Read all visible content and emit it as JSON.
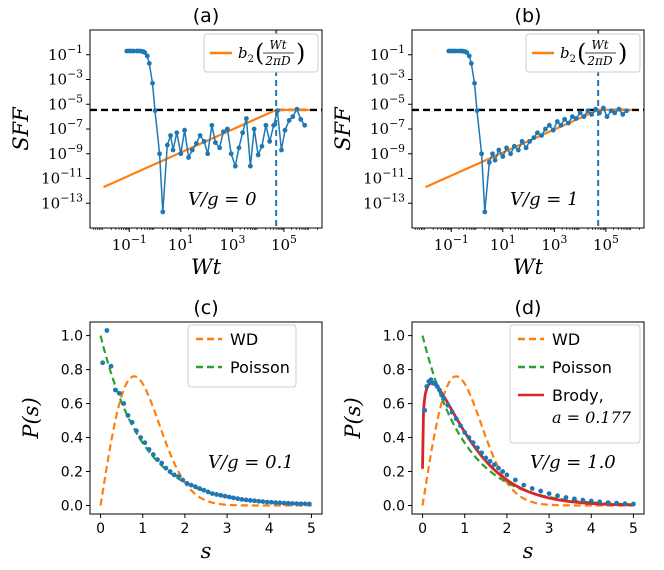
{
  "figure": {
    "description_visible": false
  },
  "chart_data": [
    {
      "id": "a",
      "panel_label": "(a)",
      "type": "line",
      "xscale": "log",
      "yscale": "log",
      "xlabel": "Wt",
      "ylabel": "SFF",
      "xlim": [
        0.003,
        3000000
      ],
      "ylim": [
        1e-15,
        10
      ],
      "x_ticks": [
        {
          "v": 0.1,
          "label": "10^-1"
        },
        {
          "v": 10,
          "label": "10^1"
        },
        {
          "v": 1000,
          "label": "10^3"
        },
        {
          "v": 100000,
          "label": "10^5"
        }
      ],
      "y_ticks": [
        {
          "v": 0.1,
          "label": "10^-1"
        },
        {
          "v": 0.001,
          "label": "10^-3"
        },
        {
          "v": 1e-05,
          "label": "10^-5"
        },
        {
          "v": 1e-07,
          "label": "10^-7"
        },
        {
          "v": 1e-09,
          "label": "10^-9"
        },
        {
          "v": 1e-11,
          "label": "10^-11"
        },
        {
          "v": 1e-13,
          "label": "10^-13"
        }
      ],
      "plateau_y": 3.5e-06,
      "heisenberg_x": 50000,
      "annotation": "V/g = 0",
      "legend": [
        {
          "label": "b2(Wt/2πD)",
          "color": "#ff7f0e",
          "style": "solid"
        }
      ],
      "series": [
        {
          "name": "b2(Wt/2πD)",
          "color": "#ff7f0e",
          "style": "line",
          "x": [
            0.01,
            50000,
            1000000
          ],
          "y": [
            2e-12,
            3.5e-06,
            3.5e-06
          ]
        },
        {
          "name": "SFF",
          "color": "#1f77b4",
          "style": "line-markers",
          "x": [
            0.08,
            0.1,
            0.12,
            0.15,
            0.2,
            0.25,
            0.3,
            0.35,
            0.4,
            0.5,
            0.6,
            0.8,
            1.0,
            1.5,
            2,
            3,
            4,
            5,
            7,
            10,
            14,
            20,
            28,
            40,
            56,
            80,
            110,
            160,
            220,
            320,
            450,
            640,
            900,
            1300,
            1800,
            2500,
            3500,
            5000,
            7000,
            10000,
            14000,
            20000,
            28000,
            40000,
            56000,
            80000,
            110000,
            160000,
            220000,
            320000,
            450000,
            640000
          ],
          "y": [
            0.2,
            0.2,
            0.2,
            0.2,
            0.2,
            0.2,
            0.19,
            0.18,
            0.15,
            0.08,
            0.02,
            0.0005,
            3e-06,
            1e-09,
            2e-14,
            5e-09,
            3e-08,
            2e-09,
            5e-08,
            1e-09,
            8e-08,
            5e-10,
            2e-09,
            7e-09,
            3e-08,
            1e-08,
            1e-09,
            2e-07,
            8e-09,
            3e-09,
            6e-08,
            1e-07,
            1e-09,
            1e-10,
            3e-09,
            5e-08,
            7e-07,
            1e-10,
            1e-07,
            8e-10,
            4e-09,
            2e-07,
            1e-08,
            2e-07,
            3e-06,
            2e-09,
            8e-08,
            5e-07,
            1e-06,
            4e-06,
            6e-07,
            2e-07
          ]
        }
      ]
    },
    {
      "id": "b",
      "panel_label": "(b)",
      "type": "line",
      "xscale": "log",
      "yscale": "log",
      "xlabel": "Wt",
      "ylabel": "SFF",
      "xlim": [
        0.003,
        3000000
      ],
      "ylim": [
        1e-15,
        10
      ],
      "x_ticks": [
        {
          "v": 0.1,
          "label": "10^-1"
        },
        {
          "v": 10,
          "label": "10^1"
        },
        {
          "v": 1000,
          "label": "10^3"
        },
        {
          "v": 100000,
          "label": "10^5"
        }
      ],
      "y_ticks": [
        {
          "v": 0.1,
          "label": "10^-1"
        },
        {
          "v": 0.001,
          "label": "10^-3"
        },
        {
          "v": 1e-05,
          "label": "10^-5"
        },
        {
          "v": 1e-07,
          "label": "10^-7"
        },
        {
          "v": 1e-09,
          "label": "10^-9"
        },
        {
          "v": 1e-11,
          "label": "10^-11"
        },
        {
          "v": 1e-13,
          "label": "10^-13"
        }
      ],
      "plateau_y": 3.5e-06,
      "heisenberg_x": 50000,
      "annotation": "V/g = 1",
      "legend": [
        {
          "label": "b2(Wt/2πD)",
          "color": "#ff7f0e",
          "style": "solid"
        }
      ],
      "series": [
        {
          "name": "b2(Wt/2πD)",
          "color": "#ff7f0e",
          "style": "line",
          "x": [
            0.01,
            50000,
            1000000
          ],
          "y": [
            2e-12,
            3.5e-06,
            3.5e-06
          ]
        },
        {
          "name": "SFF",
          "color": "#1f77b4",
          "style": "line-markers",
          "x": [
            0.08,
            0.1,
            0.12,
            0.15,
            0.2,
            0.25,
            0.3,
            0.35,
            0.4,
            0.5,
            0.6,
            0.8,
            1.0,
            1.5,
            2,
            3,
            4,
            5,
            7,
            10,
            14,
            20,
            28,
            40,
            56,
            80,
            110,
            160,
            220,
            320,
            450,
            640,
            900,
            1300,
            1800,
            2500,
            3500,
            5000,
            7000,
            10000,
            14000,
            20000,
            28000,
            40000,
            56000,
            80000,
            110000,
            160000,
            220000,
            320000,
            450000,
            640000
          ],
          "y": [
            0.2,
            0.2,
            0.2,
            0.2,
            0.2,
            0.2,
            0.19,
            0.18,
            0.15,
            0.08,
            0.02,
            0.0005,
            3e-06,
            1e-09,
            2e-14,
            2e-10,
            1e-09,
            3e-10,
            2e-09,
            6e-10,
            3e-09,
            1e-09,
            4e-09,
            2e-09,
            1e-08,
            3e-09,
            1e-08,
            2e-08,
            5e-08,
            3e-08,
            1e-07,
            2e-07,
            8e-08,
            4e-07,
            2e-07,
            6e-07,
            3e-07,
            1e-06,
            7e-07,
            2e-06,
            1e-06,
            3e-06,
            1.5e-06,
            4e-06,
            2e-06,
            5e-06,
            1e-06,
            3e-06,
            2e-06,
            4e-06,
            1.5e-06,
            3e-06
          ]
        }
      ]
    },
    {
      "id": "c",
      "panel_label": "(c)",
      "type": "line",
      "xscale": "linear",
      "yscale": "linear",
      "xlabel": "s",
      "ylabel": "P(s)",
      "xlim": [
        -0.25,
        5.25
      ],
      "ylim": [
        -0.05,
        1.08
      ],
      "x_ticks": [
        0,
        1,
        2,
        3,
        4,
        5
      ],
      "y_ticks": [
        0.0,
        0.2,
        0.4,
        0.6,
        0.8,
        1.0
      ],
      "annotation": "V/g = 0.1",
      "legend": [
        {
          "label": "WD",
          "color": "#ff7f0e",
          "style": "dashed"
        },
        {
          "label": "Poisson",
          "color": "#2ca02c",
          "style": "dashed"
        }
      ],
      "series": [
        {
          "name": "WD",
          "color": "#ff7f0e",
          "style": "dashed",
          "formula": "wigner_dyson"
        },
        {
          "name": "Poisson",
          "color": "#2ca02c",
          "style": "dashed",
          "formula": "poisson"
        },
        {
          "name": "data",
          "color": "#1f77b4",
          "style": "markers",
          "x": [
            0.05,
            0.15,
            0.25,
            0.35,
            0.45,
            0.55,
            0.65,
            0.75,
            0.85,
            0.95,
            1.05,
            1.15,
            1.25,
            1.35,
            1.45,
            1.55,
            1.65,
            1.75,
            1.85,
            1.95,
            2.05,
            2.15,
            2.25,
            2.35,
            2.45,
            2.55,
            2.65,
            2.75,
            2.85,
            2.95,
            3.05,
            3.15,
            3.25,
            3.35,
            3.45,
            3.55,
            3.65,
            3.75,
            3.85,
            3.95,
            4.05,
            4.15,
            4.25,
            4.35,
            4.45,
            4.55,
            4.65,
            4.75,
            4.85,
            4.95
          ],
          "y": [
            0.84,
            1.03,
            0.82,
            0.68,
            0.66,
            0.6,
            0.53,
            0.49,
            0.44,
            0.4,
            0.37,
            0.33,
            0.3,
            0.27,
            0.25,
            0.22,
            0.2,
            0.18,
            0.17,
            0.15,
            0.13,
            0.12,
            0.11,
            0.1,
            0.09,
            0.08,
            0.07,
            0.065,
            0.06,
            0.055,
            0.05,
            0.045,
            0.04,
            0.036,
            0.033,
            0.03,
            0.028,
            0.025,
            0.023,
            0.02,
            0.019,
            0.017,
            0.016,
            0.014,
            0.013,
            0.012,
            0.011,
            0.01,
            0.01,
            0.009
          ]
        }
      ]
    },
    {
      "id": "d",
      "panel_label": "(d)",
      "type": "line",
      "xscale": "linear",
      "yscale": "linear",
      "xlabel": "s",
      "ylabel": "P(s)",
      "xlim": [
        -0.25,
        5.25
      ],
      "ylim": [
        -0.05,
        1.08
      ],
      "x_ticks": [
        0,
        1,
        2,
        3,
        4,
        5
      ],
      "y_ticks": [
        0.0,
        0.2,
        0.4,
        0.6,
        0.8,
        1.0
      ],
      "annotation": "V/g = 1.0",
      "legend": [
        {
          "label": "WD",
          "color": "#ff7f0e",
          "style": "dashed"
        },
        {
          "label": "Poisson",
          "color": "#2ca02c",
          "style": "dashed"
        },
        {
          "label": "Brody,",
          "label2": "a = 0.177",
          "color": "#d62728",
          "style": "solid"
        }
      ],
      "brody_a": 0.177,
      "series": [
        {
          "name": "WD",
          "color": "#ff7f0e",
          "style": "dashed",
          "formula": "wigner_dyson"
        },
        {
          "name": "Poisson",
          "color": "#2ca02c",
          "style": "dashed",
          "formula": "poisson"
        },
        {
          "name": "Brody",
          "color": "#d62728",
          "style": "solid",
          "formula": "brody"
        },
        {
          "name": "data",
          "color": "#1f77b4",
          "style": "markers",
          "x": [
            0.05,
            0.1,
            0.15,
            0.2,
            0.25,
            0.3,
            0.35,
            0.4,
            0.45,
            0.5,
            0.6,
            0.7,
            0.8,
            0.9,
            1.0,
            1.1,
            1.2,
            1.3,
            1.4,
            1.5,
            1.6,
            1.7,
            1.8,
            1.9,
            2.0,
            2.2,
            2.4,
            2.6,
            2.8,
            3.0,
            3.2,
            3.4,
            3.6,
            3.8,
            4.0,
            4.2,
            4.4,
            4.6,
            4.8,
            5.0
          ],
          "y": [
            0.56,
            0.7,
            0.73,
            0.74,
            0.72,
            0.72,
            0.7,
            0.68,
            0.65,
            0.63,
            0.59,
            0.55,
            0.51,
            0.47,
            0.43,
            0.4,
            0.37,
            0.34,
            0.31,
            0.28,
            0.26,
            0.24,
            0.22,
            0.2,
            0.18,
            0.15,
            0.12,
            0.1,
            0.085,
            0.07,
            0.057,
            0.047,
            0.039,
            0.032,
            0.026,
            0.021,
            0.017,
            0.014,
            0.011,
            0.009
          ]
        }
      ]
    }
  ]
}
